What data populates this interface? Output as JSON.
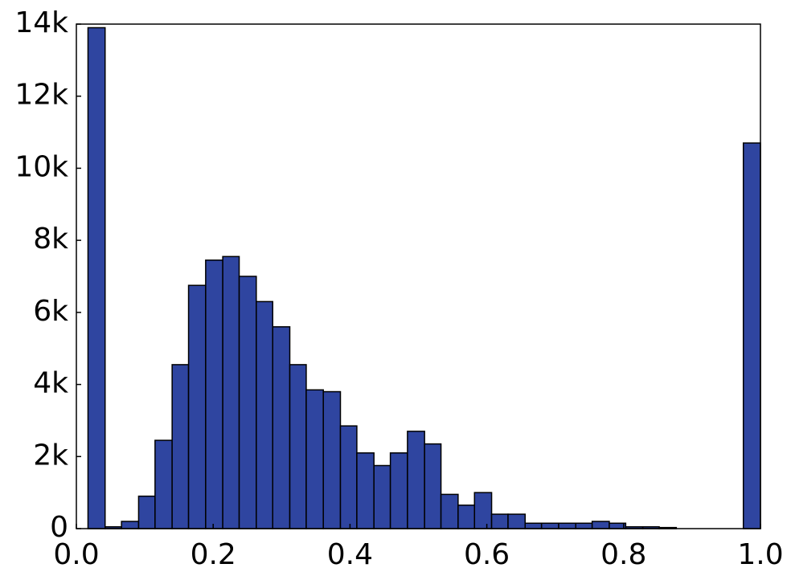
{
  "chart_data": {
    "type": "histogram",
    "bins": [
      0.017,
      0.042,
      0.066,
      0.091,
      0.115,
      0.14,
      0.164,
      0.189,
      0.214,
      0.238,
      0.263,
      0.287,
      0.312,
      0.336,
      0.361,
      0.386,
      0.41,
      0.435,
      0.459,
      0.484,
      0.509,
      0.533,
      0.558,
      0.582,
      0.607,
      0.631,
      0.656,
      0.68,
      0.705,
      0.73,
      0.754,
      0.779,
      0.803,
      0.828,
      0.852,
      0.877,
      0.902,
      0.926,
      0.951,
      0.975,
      1.0
    ],
    "values": [
      13900,
      50,
      200,
      900,
      2450,
      4550,
      6750,
      7450,
      7550,
      7000,
      6300,
      5600,
      4550,
      3850,
      3800,
      2850,
      2100,
      1750,
      2100,
      2700,
      2350,
      950,
      650,
      1000,
      400,
      400,
      150,
      150,
      150,
      150,
      200,
      150,
      50,
      50,
      30,
      0,
      0,
      0,
      0,
      10700
    ],
    "color": "#2f45a0",
    "xlim": [
      0,
      1
    ],
    "ylim": [
      0,
      14000
    ],
    "xticks": [
      {
        "value": 0,
        "label": "0.0"
      },
      {
        "value": 0.2,
        "label": "0.2"
      },
      {
        "value": 0.4,
        "label": "0.4"
      },
      {
        "value": 0.6,
        "label": "0.6"
      },
      {
        "value": 0.8,
        "label": "0.8"
      },
      {
        "value": 1,
        "label": "1.0"
      }
    ],
    "yticks": [
      0,
      {
        "value": 2000,
        "label": "2k"
      },
      {
        "value": 4000,
        "label": "4k"
      },
      {
        "value": 6000,
        "label": "6k"
      },
      {
        "value": 8000,
        "label": "8k"
      },
      {
        "value": 10000,
        "label": "10k"
      },
      {
        "value": 12000,
        "label": "12k"
      },
      {
        "value": 14000,
        "label": "14k"
      }
    ],
    "grid": false
  }
}
